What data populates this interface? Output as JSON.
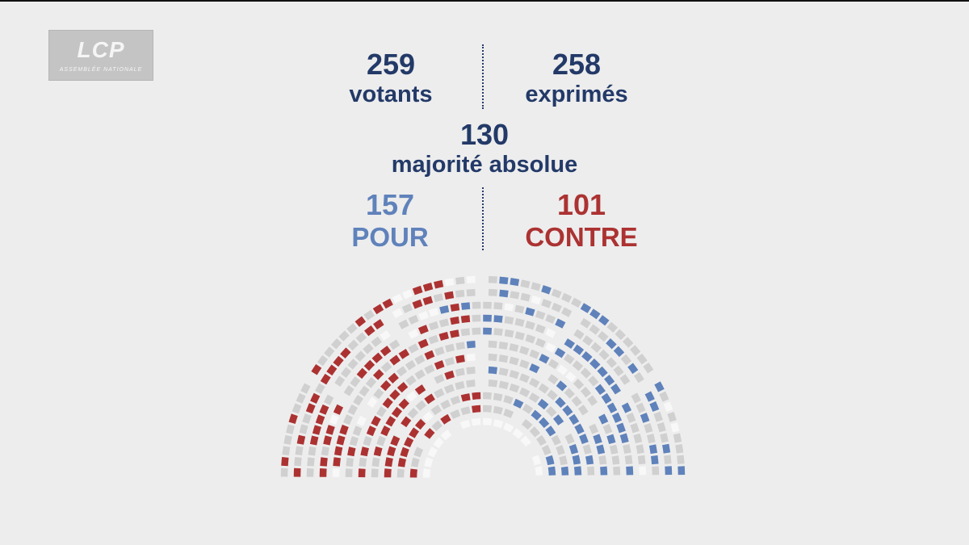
{
  "channel": {
    "logo_text": "LCP",
    "logo_subtitle": "ASSEMBLÉE NATIONALE"
  },
  "results": {
    "votants": {
      "value": "259",
      "label": "votants"
    },
    "exprimes": {
      "value": "258",
      "label": "exprimés"
    },
    "majorite": {
      "value": "130",
      "label": "majorité absolue"
    },
    "pour": {
      "value": "157",
      "label": "POUR"
    },
    "contre": {
      "value": "101",
      "label": "CONTRE"
    }
  },
  "hemicycle": {
    "votes_pour": 157,
    "votes_contre": 101,
    "rows": 12,
    "sectors": 6,
    "colors": {
      "pour": "#5f82bb",
      "contre": "#ac3232",
      "absent": "#d0d0d0",
      "empty": "#f8f8f8",
      "text_navy": "#233a68",
      "background": "#ededed"
    }
  }
}
